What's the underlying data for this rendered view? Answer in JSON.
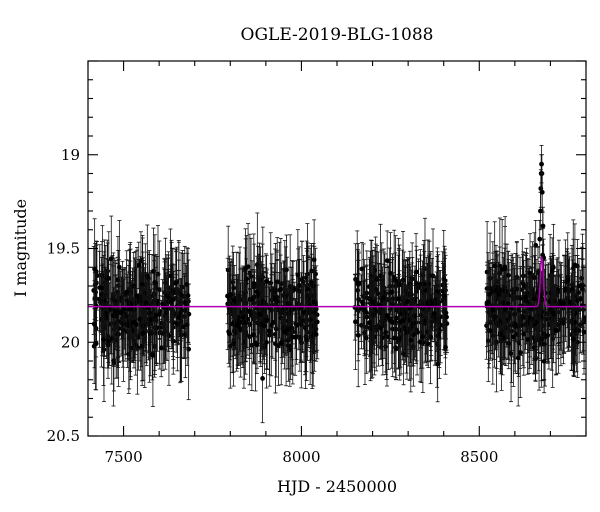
{
  "chart_data": {
    "type": "scatter",
    "title": "OGLE-2019-BLG-1088",
    "xlabel": "HJD - 2450000",
    "ylabel": "I magnitude",
    "xlim": [
      7400,
      8800
    ],
    "ylim": [
      20.5,
      18.5
    ],
    "y_axis_inverted": true,
    "xticks": [
      7500,
      8000,
      8500
    ],
    "yticks": [
      19,
      19.5,
      20,
      20.5
    ],
    "xtick_labels": [
      "7500",
      "8000",
      "8500"
    ],
    "ytick_labels": [
      "19",
      "19.5",
      "20",
      "20.5"
    ],
    "grid": false,
    "legend": "none",
    "colors": {
      "data": "#000000",
      "model": "#b400b4"
    },
    "series": [
      {
        "kind": "photometry_with_error_bars",
        "seasons": [
          {
            "x_range": [
              7415,
              7685
            ],
            "baseline_mag": 19.83,
            "scatter_mag": 0.15,
            "typical_error_mag": 0.2
          },
          {
            "x_range": [
              7790,
              8045
            ],
            "baseline_mag": 19.83,
            "scatter_mag": 0.14,
            "typical_error_mag": 0.2
          },
          {
            "x_range": [
              8150,
              8410
            ],
            "baseline_mag": 19.83,
            "scatter_mag": 0.14,
            "typical_error_mag": 0.2
          },
          {
            "x_range": [
              8520,
              8795
            ],
            "baseline_mag": 19.83,
            "scatter_mag": 0.15,
            "typical_error_mag": 0.2
          }
        ],
        "event_points": [
          {
            "x": 8670,
            "y": 19.45
          },
          {
            "x": 8672,
            "y": 19.3
          },
          {
            "x": 8673,
            "y": 19.18
          },
          {
            "x": 8674,
            "y": 19.1
          },
          {
            "x": 8675,
            "y": 19.05
          },
          {
            "x": 8676,
            "y": 19.1
          },
          {
            "x": 8677,
            "y": 19.2
          },
          {
            "x": 8679,
            "y": 19.38
          },
          {
            "x": 8681,
            "y": 19.55
          }
        ]
      },
      {
        "kind": "model_curve",
        "baseline_mag": 19.81,
        "peak_x": 8676,
        "peak_mag": 19.55,
        "width_days": 6
      }
    ]
  }
}
